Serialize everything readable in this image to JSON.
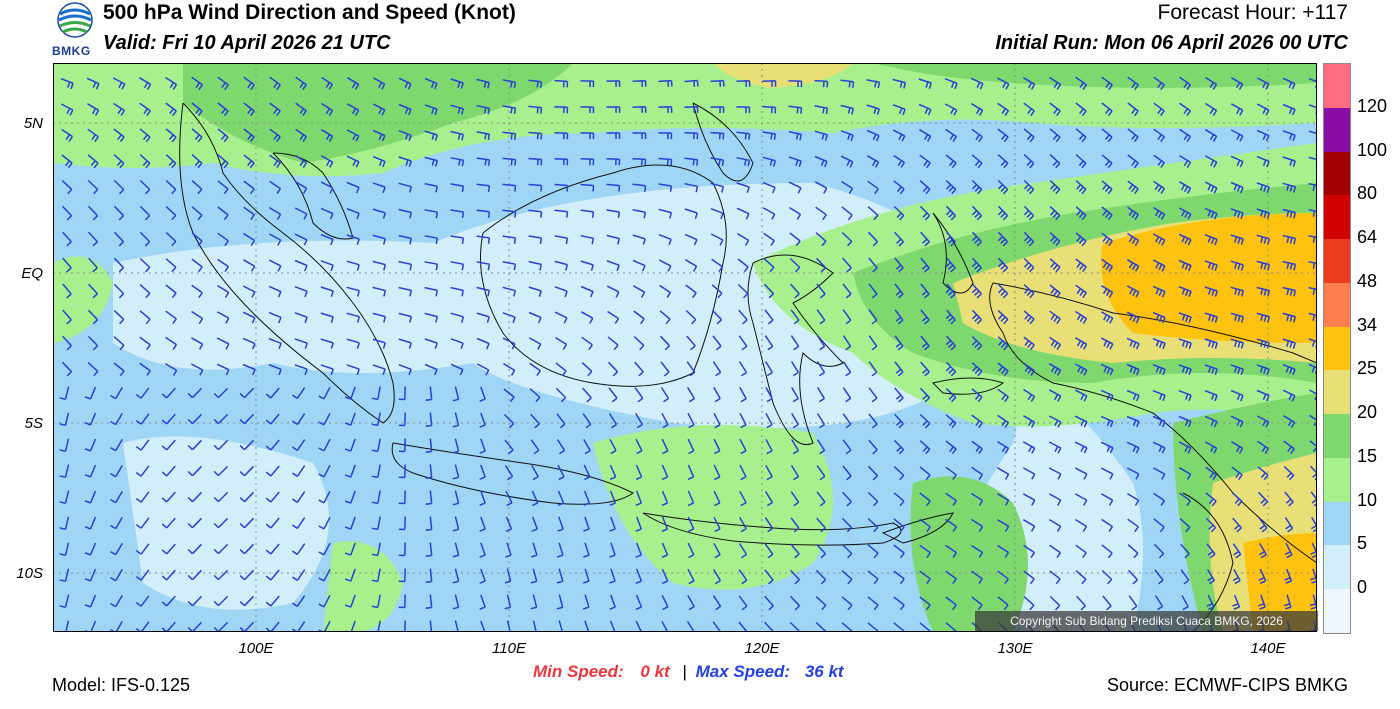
{
  "header": {
    "title": "500 hPa Wind Direction and Speed (Knot)",
    "valid": "Valid: Fri 10 April 2026 21 UTC",
    "forecast_hour": "Forecast Hour: +117",
    "initial_run": "Initial Run: Mon 06 April 2026 00 UTC"
  },
  "logo": {
    "label": "BMKG"
  },
  "map": {
    "lat_labels": [
      "5N",
      "EQ",
      "5S",
      "10S"
    ],
    "lon_labels": [
      "100E",
      "110E",
      "120E",
      "130E",
      "140E"
    ],
    "copyright": "Copyright Sub Bidang Prediksi Cuaca BMKG, 2026"
  },
  "colorbar": {
    "labels": [
      "120",
      "100",
      "80",
      "64",
      "48",
      "34",
      "25",
      "20",
      "15",
      "10",
      "5",
      "0"
    ],
    "colors": [
      "#ff6b81",
      "#8a0ea6",
      "#a00000",
      "#d00000",
      "#ec3b1e",
      "#ff7f50",
      "#ffc20e",
      "#e8e077",
      "#7ed86e",
      "#a8f08e",
      "#9fd6f6",
      "#d2eefb",
      "#eef7fe"
    ]
  },
  "footer": {
    "model": "Model: IFS-0.125",
    "min_speed_label": "Min Speed:",
    "min_speed_value": "0 kt",
    "separator": "|",
    "max_speed_label": "Max Speed:",
    "max_speed_value": "36 kt",
    "source": "Source: ECMWF-CIPS BMKG"
  }
}
